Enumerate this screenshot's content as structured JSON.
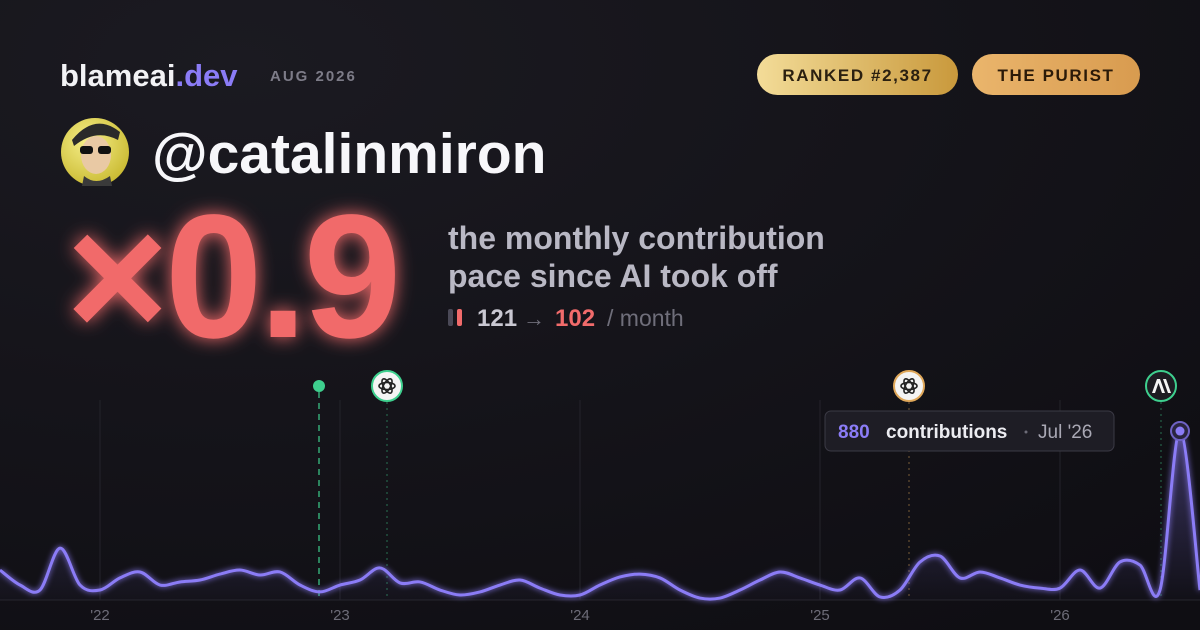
{
  "header": {
    "brand": "blameai",
    "brand_tld": ".dev",
    "period": "AUG 2026",
    "badges": [
      "RANKED #2,387",
      "THE PURIST"
    ],
    "handle": "@catalinmiron"
  },
  "stats": {
    "multiplier": "×0.9",
    "description": [
      "the monthly contribution",
      "pace since AI took off"
    ],
    "before": 121,
    "arrow": "→",
    "after": 102,
    "unit": "/ month"
  },
  "chart_data": {
    "type": "line",
    "x": [
      "2021-08",
      "2021-09",
      "2021-10",
      "2021-11",
      "2021-12",
      "2022-01",
      "2022-02",
      "2022-03",
      "2022-04",
      "2022-05",
      "2022-06",
      "2022-07",
      "2022-08",
      "2022-09",
      "2022-10",
      "2022-11",
      "2022-12",
      "2023-01",
      "2023-02",
      "2023-03",
      "2023-04",
      "2023-05",
      "2023-06",
      "2023-07",
      "2023-08",
      "2023-09",
      "2023-10",
      "2023-11",
      "2023-12",
      "2024-01",
      "2024-02",
      "2024-03",
      "2024-04",
      "2024-05",
      "2024-06",
      "2024-07",
      "2024-08",
      "2024-09",
      "2024-10",
      "2024-11",
      "2024-12",
      "2025-01",
      "2025-02",
      "2025-03",
      "2025-04",
      "2025-05",
      "2025-06",
      "2025-07",
      "2025-08",
      "2025-09",
      "2025-10",
      "2025-11",
      "2025-12",
      "2026-01",
      "2026-02",
      "2026-03",
      "2026-04",
      "2026-05",
      "2026-06",
      "2026-07",
      "2026-08"
    ],
    "series": [
      {
        "name": "contributions",
        "color": "#8b7cf6",
        "values": [
          156,
          78,
          52,
          270,
          78,
          52,
          115,
          146,
          78,
          94,
          104,
          135,
          156,
          130,
          146,
          78,
          42,
          78,
          104,
          167,
          89,
          94,
          52,
          26,
          42,
          78,
          104,
          62,
          26,
          26,
          78,
          120,
          135,
          115,
          52,
          10,
          10,
          52,
          104,
          146,
          115,
          78,
          52,
          115,
          16,
          52,
          198,
          229,
          115,
          146,
          115,
          78,
          62,
          62,
          156,
          62,
          198,
          182,
          52,
          880,
          52
        ]
      }
    ],
    "xlim": [
      "2021-08",
      "2026-08"
    ],
    "xticks": [
      {
        "value": "2022-01",
        "label": "'22"
      },
      {
        "value": "2023-01",
        "label": "'23"
      },
      {
        "value": "2024-01",
        "label": "'24"
      },
      {
        "value": "2025-01",
        "label": "'25"
      },
      {
        "value": "2026-01",
        "label": "'26"
      }
    ],
    "ylim": [
      0,
      1000
    ],
    "grid": true,
    "tooltip": {
      "index": 59,
      "date": "Jul '26"
    }
  }
}
